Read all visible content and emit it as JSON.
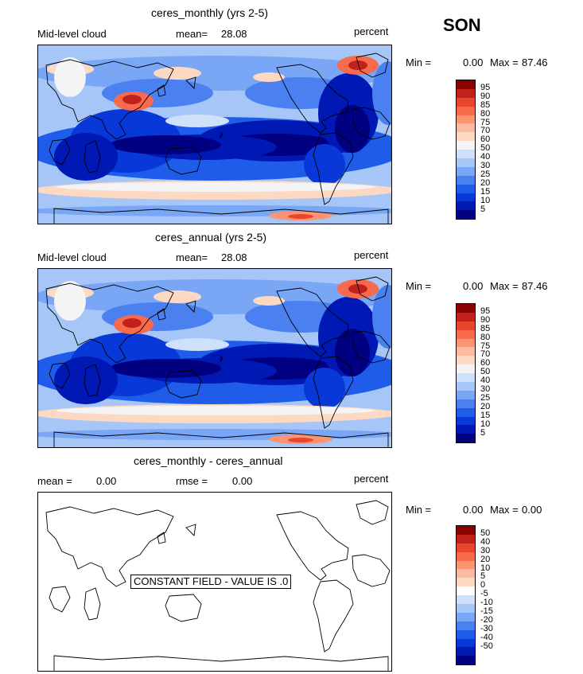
{
  "season": "SON",
  "colors": {
    "cloud_scale": [
      "#000080",
      "#0019b4",
      "#0838d8",
      "#1f5cea",
      "#4a80f0",
      "#79a6f5",
      "#a6c6f8",
      "#cfe0fb",
      "#f4f4f4",
      "#fdd9c4",
      "#fcbba1",
      "#fc9472",
      "#f86a4b",
      "#e8442e",
      "#c0221b",
      "#8b0000"
    ],
    "diff_scale": [
      "#000080",
      "#0019b4",
      "#0838d8",
      "#1f5cea",
      "#4a80f0",
      "#79a6f5",
      "#a6c6f8",
      "#cfe0fb",
      "#ffffff",
      "#fdd9c4",
      "#fcbba1",
      "#fc9472",
      "#f86a4b",
      "#e8442e",
      "#c0221b",
      "#8b0000"
    ]
  },
  "panels": [
    {
      "title": "ceres_monthly (yrs 2-5)",
      "left_label": "Mid-level cloud",
      "mean_label": "mean=",
      "mean_value": "28.08",
      "units": "percent",
      "min_label": "Min =",
      "min_value": "0.00",
      "max_label": "Max =",
      "max_value": "87.46",
      "legend_ticks": [
        "95",
        "90",
        "85",
        "80",
        "75",
        "70",
        "60",
        "50",
        "40",
        "30",
        "25",
        "20",
        "15",
        "10",
        "5"
      ]
    },
    {
      "title": "ceres_annual (yrs 2-5)",
      "left_label": "Mid-level cloud",
      "mean_label": "mean=",
      "mean_value": "28.08",
      "units": "percent",
      "min_label": "Min =",
      "min_value": "0.00",
      "max_label": "Max =",
      "max_value": "87.46",
      "legend_ticks": [
        "95",
        "90",
        "85",
        "80",
        "75",
        "70",
        "60",
        "50",
        "40",
        "30",
        "25",
        "20",
        "15",
        "10",
        "5"
      ]
    },
    {
      "title": "ceres_monthly - ceres_annual",
      "mean_label": "mean =",
      "mean_value": "0.00",
      "rmse_label": "rmse =",
      "rmse_value": "0.00",
      "units": "percent",
      "min_label": "Min =",
      "min_value": "0.00",
      "max_label": "Max =",
      "max_value": "0.00",
      "constant_text": "CONSTANT FIELD - VALUE IS .0",
      "legend_ticks": [
        "50",
        "40",
        "30",
        "20",
        "10",
        "5",
        "0",
        "-5",
        "-10",
        "-15",
        "-20",
        "-30",
        "-40",
        "-50"
      ]
    }
  ]
}
